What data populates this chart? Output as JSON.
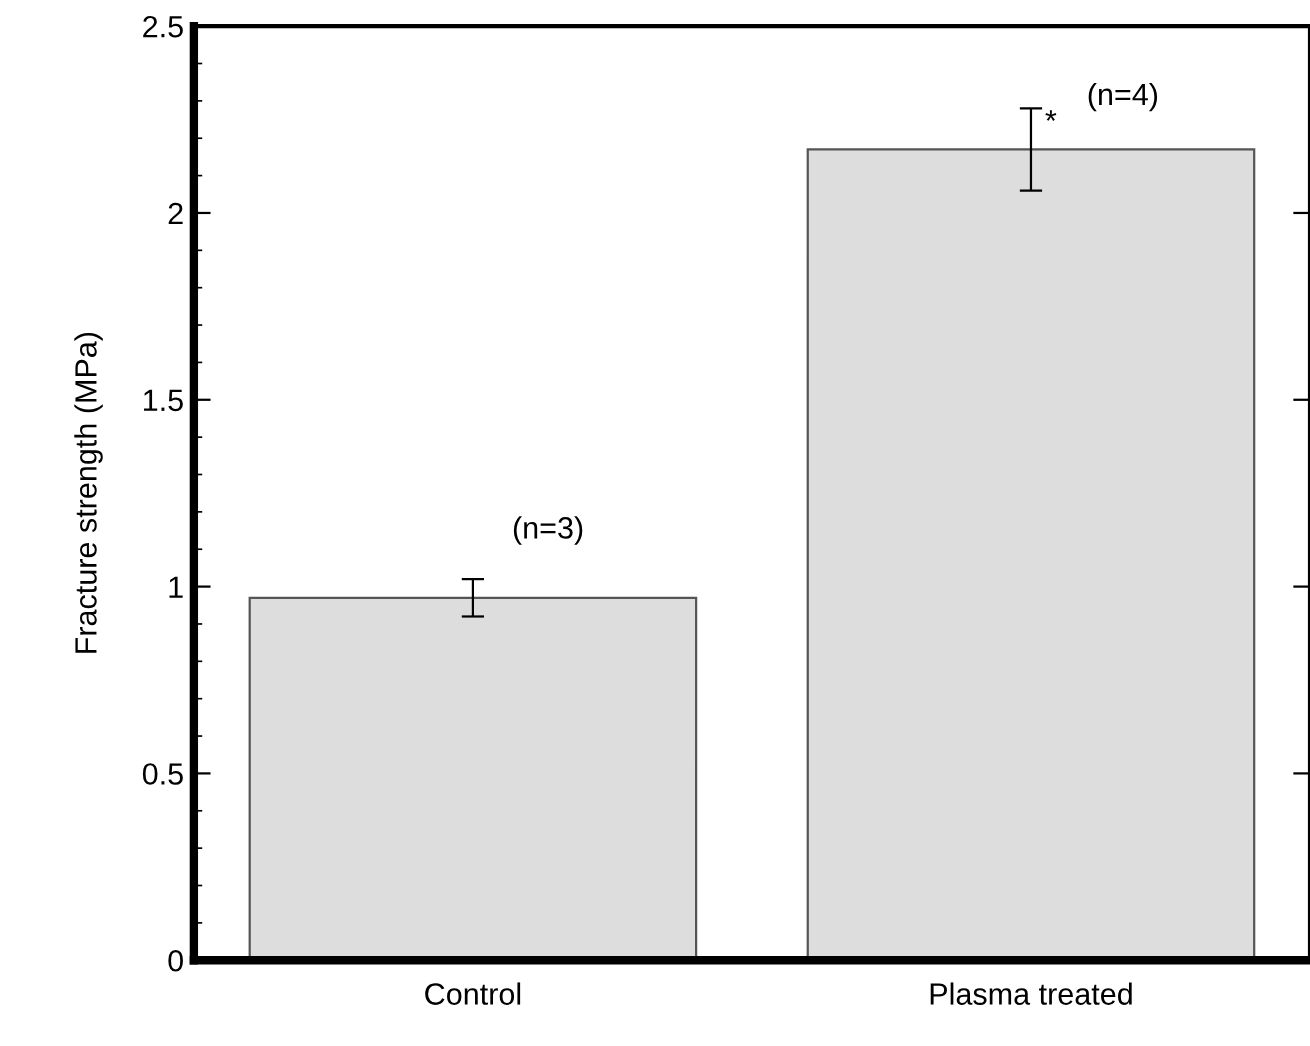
{
  "chart_data": {
    "type": "bar",
    "ylabel": "Fracture strength (MPa)",
    "categories": [
      "Control",
      "Plasma treated"
    ],
    "values": [
      0.97,
      2.17
    ],
    "errors": [
      0.05,
      0.11
    ],
    "color": "#dddddd",
    "ylim": [
      0,
      2.5
    ],
    "yticks": [
      0,
      0.5,
      1,
      1.5,
      2,
      2.5
    ],
    "grid": false,
    "annotations": [
      "(n=3)",
      "*",
      "(n=4)"
    ]
  }
}
